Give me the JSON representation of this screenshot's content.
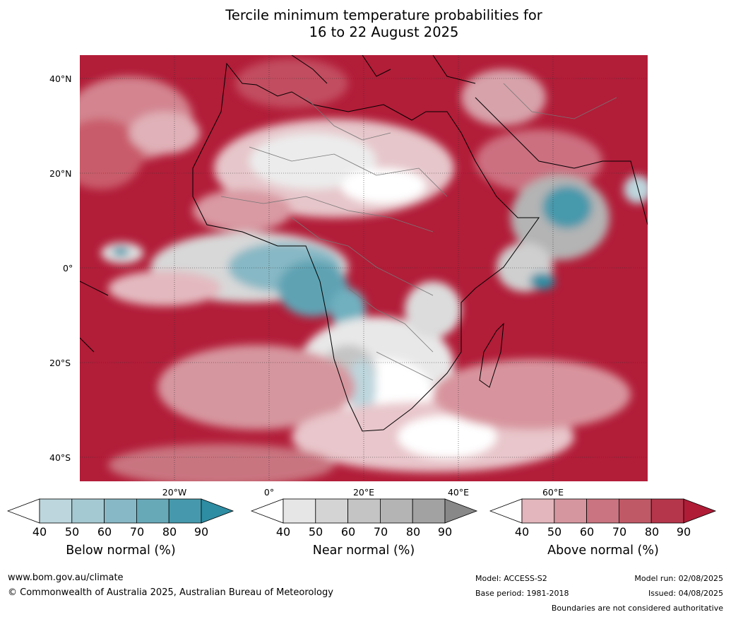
{
  "title_line1": "Tercile minimum temperature probabilities for",
  "title_line2": "16 to 22 August 2025",
  "lat_labels": [
    "40°N",
    "20°N",
    "0°",
    "20°S",
    "40°S"
  ],
  "lon_labels": [
    "20°W",
    "0°",
    "20°E",
    "40°E",
    "60°E"
  ],
  "colorbars": [
    {
      "title": "Below normal (%)",
      "ticks": [
        "40",
        "50",
        "60",
        "70",
        "80",
        "90"
      ],
      "colors": [
        "#bdd6dd",
        "#a5c9d2",
        "#87b8c5",
        "#68a9b8",
        "#4699ac"
      ],
      "extend_low": "#ffffff",
      "extend_high": "#2e8da3"
    },
    {
      "title": "Near normal (%)",
      "ticks": [
        "40",
        "50",
        "60",
        "70",
        "80",
        "90"
      ],
      "colors": [
        "#e6e6e6",
        "#d4d4d4",
        "#c4c4c4",
        "#b4b4b4",
        "#a2a2a2"
      ],
      "extend_low": "#ffffff",
      "extend_high": "#888888"
    },
    {
      "title": "Above normal (%)",
      "ticks": [
        "40",
        "50",
        "60",
        "70",
        "80",
        "90"
      ],
      "colors": [
        "#e2b6bc",
        "#d6969f",
        "#c97480",
        "#bf5966",
        "#b5364a"
      ],
      "extend_low": "#ffffff",
      "extend_high": "#b01c36"
    }
  ],
  "footer": {
    "website": "www.bom.gov.au/climate",
    "copyright": "© Commonwealth of Australia 2025, Australian Bureau of Meteorology",
    "model": "Model: ACCESS-S2",
    "base_period": "Base period: 1981-2018",
    "model_run": "Model run: 02/08/2025",
    "issued": "Issued: 04/08/2025",
    "disclaimer": "Boundaries are not considered authoritative"
  }
}
